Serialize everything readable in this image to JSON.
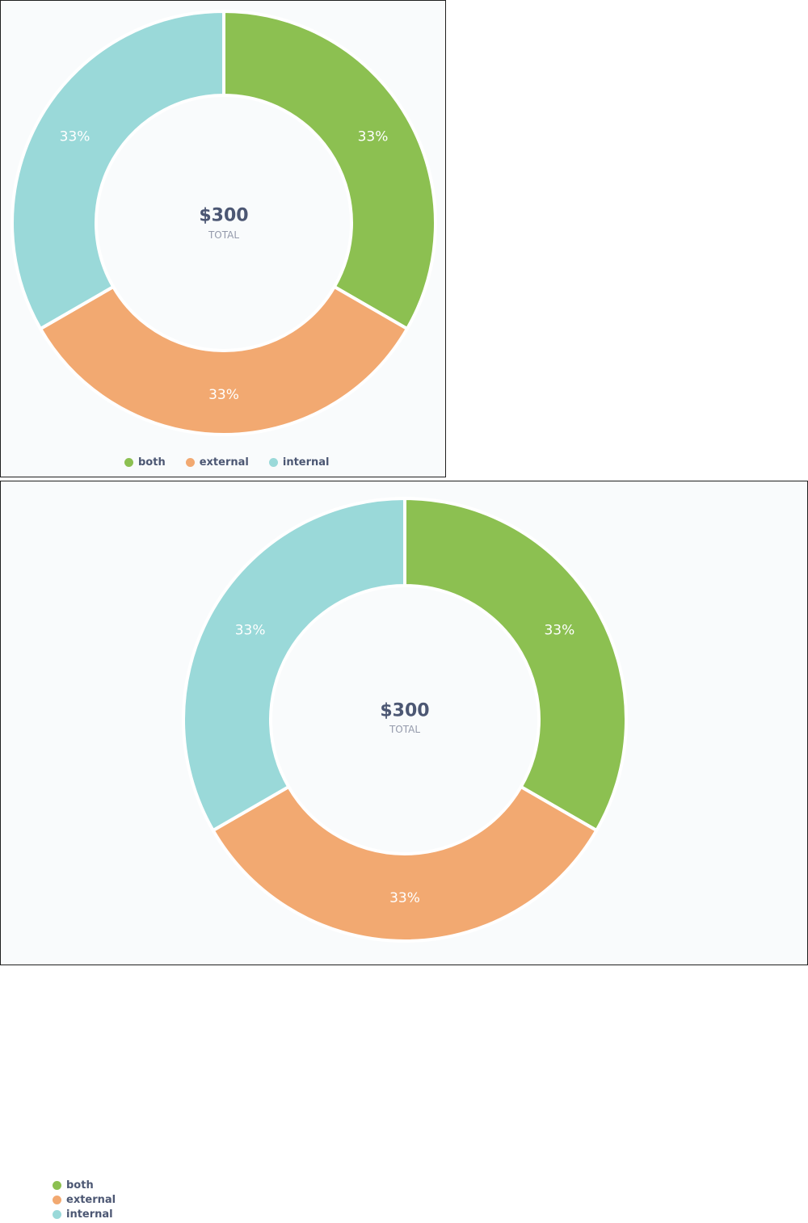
{
  "chart_data": [
    {
      "type": "pie",
      "variant": "donut",
      "slices": [
        {
          "label": "both",
          "value": 100,
          "percent_label": "33%",
          "color": "#8cc051"
        },
        {
          "label": "external",
          "value": 100,
          "percent_label": "33%",
          "color": "#f2a971"
        },
        {
          "label": "internal",
          "value": 100,
          "percent_label": "33%",
          "color": "#9ad9d9"
        }
      ],
      "center_value": "$300",
      "center_label": "TOTAL",
      "legend_position": "bottom"
    },
    {
      "type": "pie",
      "variant": "donut",
      "slices": [
        {
          "label": "both",
          "value": 100,
          "percent_label": "33%",
          "color": "#8cc051"
        },
        {
          "label": "external",
          "value": 100,
          "percent_label": "33%",
          "color": "#f2a971"
        },
        {
          "label": "internal",
          "value": 100,
          "percent_label": "33%",
          "color": "#9ad9d9"
        }
      ],
      "center_value": "$300",
      "center_label": "TOTAL",
      "legend_position": "left"
    }
  ]
}
